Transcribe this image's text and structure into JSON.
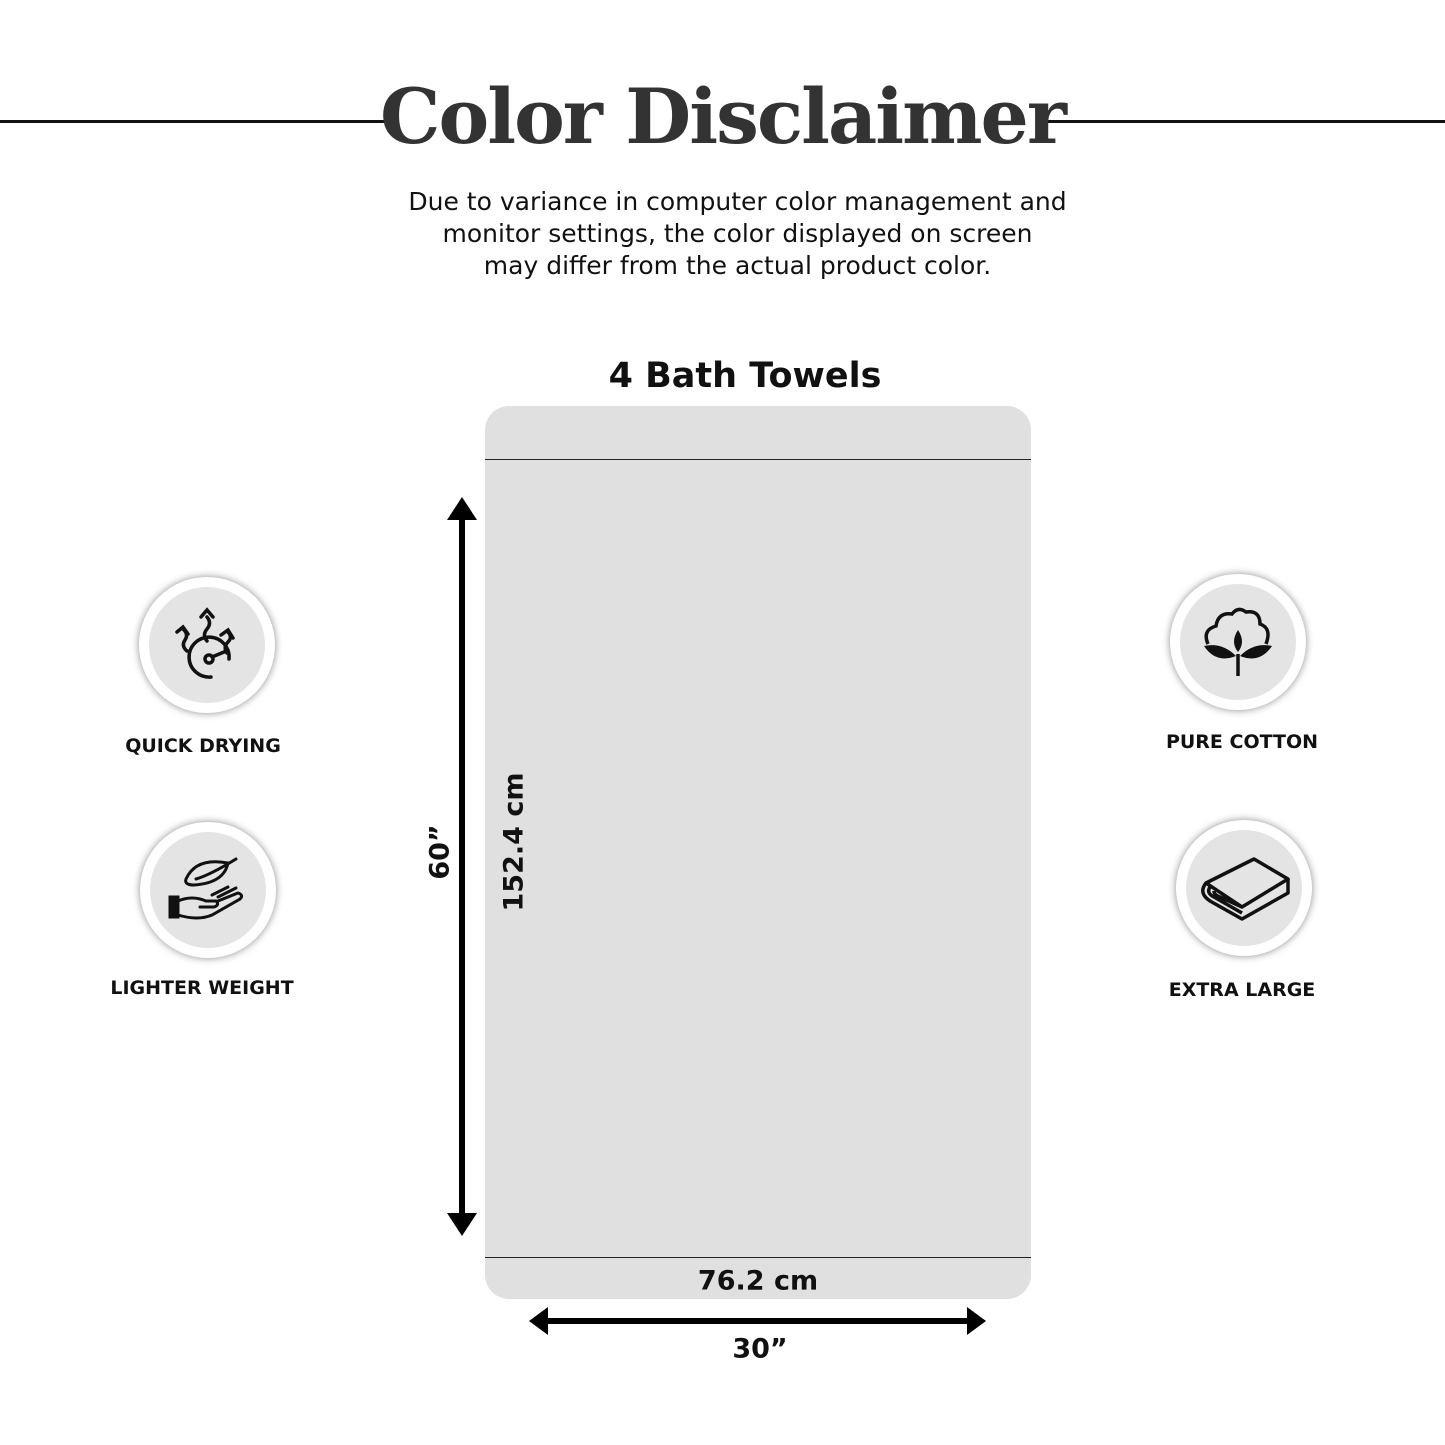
{
  "header": {
    "title": "Color Disclaimer",
    "disclaimer_lines": [
      "Due to variance in computer color management and",
      "monitor settings, the color displayed on screen",
      "may differ from the actual product color."
    ]
  },
  "product": {
    "subtitle": "4 Bath Towels",
    "length_in": "60”",
    "length_cm": "152.4 cm",
    "width_cm": "76.2 cm",
    "width_in": "30”",
    "towel_color": "#e0e0e0"
  },
  "features": [
    {
      "label": "QUICK DRYING",
      "icon": "quick-drying-icon"
    },
    {
      "label": "LIGHTER WEIGHT",
      "icon": "feather-hand-icon"
    },
    {
      "label": "PURE COTTON",
      "icon": "cotton-flower-icon"
    },
    {
      "label": "EXTRA LARGE",
      "icon": "folded-towel-icon"
    }
  ]
}
